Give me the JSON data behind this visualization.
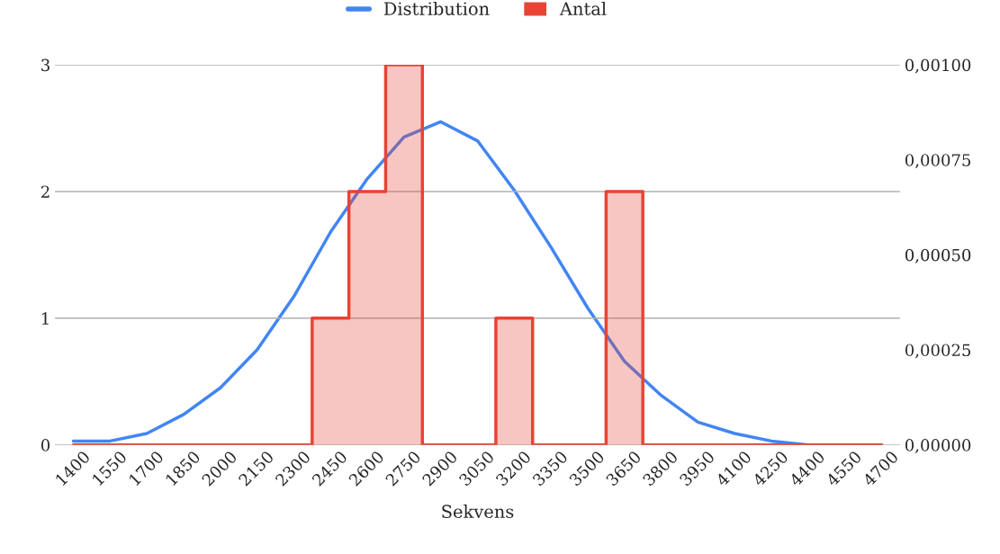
{
  "chart_data": {
    "type": "step",
    "xlabel": "Sekvens",
    "categories": [
      "1400",
      "1550",
      "1700",
      "1850",
      "2000",
      "2150",
      "2300",
      "2450",
      "2600",
      "2750",
      "2900",
      "3050",
      "3200",
      "3350",
      "3500",
      "3650",
      "3800",
      "3950",
      "4100",
      "4250",
      "4400",
      "4550",
      "4700"
    ],
    "series": [
      {
        "name": "Distribution",
        "type": "line",
        "axis": "y2",
        "color": "#4285f4",
        "values": [
          1e-05,
          1e-05,
          3e-05,
          8e-05,
          0.00015,
          0.00025,
          0.00039,
          0.00056,
          0.0007,
          0.00081,
          0.00085,
          0.0008,
          0.00067,
          0.00052,
          0.00036,
          0.00022,
          0.00013,
          6e-05,
          3e-05,
          1e-05,
          0,
          0,
          0
        ]
      },
      {
        "name": "Antal",
        "color": "#e84335",
        "values": [
          0,
          0,
          0,
          0,
          0,
          0,
          0,
          1,
          2,
          3,
          0,
          0,
          1,
          0,
          0,
          2,
          0,
          0,
          0,
          0,
          0,
          0,
          0
        ]
      }
    ],
    "ylim": [
      0,
      3
    ],
    "yticks": [
      0,
      1,
      2,
      3
    ],
    "y2lim": [
      0,
      0.001
    ],
    "y2ticks": [
      {
        "value": 0,
        "label": "0,00000"
      },
      {
        "value": 0.00025,
        "label": "0,00025"
      },
      {
        "value": 0.0005,
        "label": "0,00050"
      },
      {
        "value": 0.00075,
        "label": "0,00075"
      },
      {
        "value": 0.001,
        "label": "0,00100"
      }
    ],
    "grid": "y",
    "legend": "top"
  }
}
